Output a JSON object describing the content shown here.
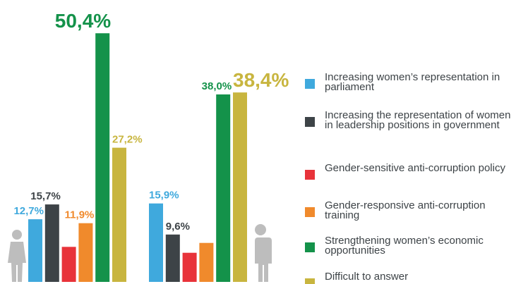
{
  "chart_data": {
    "type": "bar",
    "categories": [
      null,
      null
    ],
    "ylim": [
      0,
      51
    ],
    "series": [
      {
        "name": "Increasing women’s representation in parliament",
        "color": "#3fa9dd",
        "values": [
          12.7,
          15.9
        ],
        "value_labels": [
          "12,7%",
          "15,9%"
        ]
      },
      {
        "name": "Increasing the representation of women in leadership positions in government",
        "color": "#3d4347",
        "values": [
          15.7,
          9.6
        ],
        "value_labels": [
          "15,7%",
          "9,6%"
        ]
      },
      {
        "name": "Gender-sensitive anti-corruption policy",
        "color": "#e8333a",
        "values": [
          7.1,
          5.9
        ],
        "value_labels": [
          null,
          null
        ]
      },
      {
        "name": "Gender-responsive anti-corruption training",
        "color": "#f08a2c",
        "values": [
          11.9,
          7.9
        ],
        "value_labels": [
          "11,9%",
          null
        ]
      },
      {
        "name": "Strengthening women’s economic opportunities",
        "color": "#14924a",
        "values": [
          50.4,
          38.0
        ],
        "value_labels": [
          "50,4%",
          "38,0%"
        ]
      },
      {
        "name": "Difficult to answer",
        "color": "#c8b53f",
        "values": [
          27.2,
          38.4
        ],
        "value_labels": [
          "27,2%",
          "38,4%"
        ]
      }
    ]
  }
}
